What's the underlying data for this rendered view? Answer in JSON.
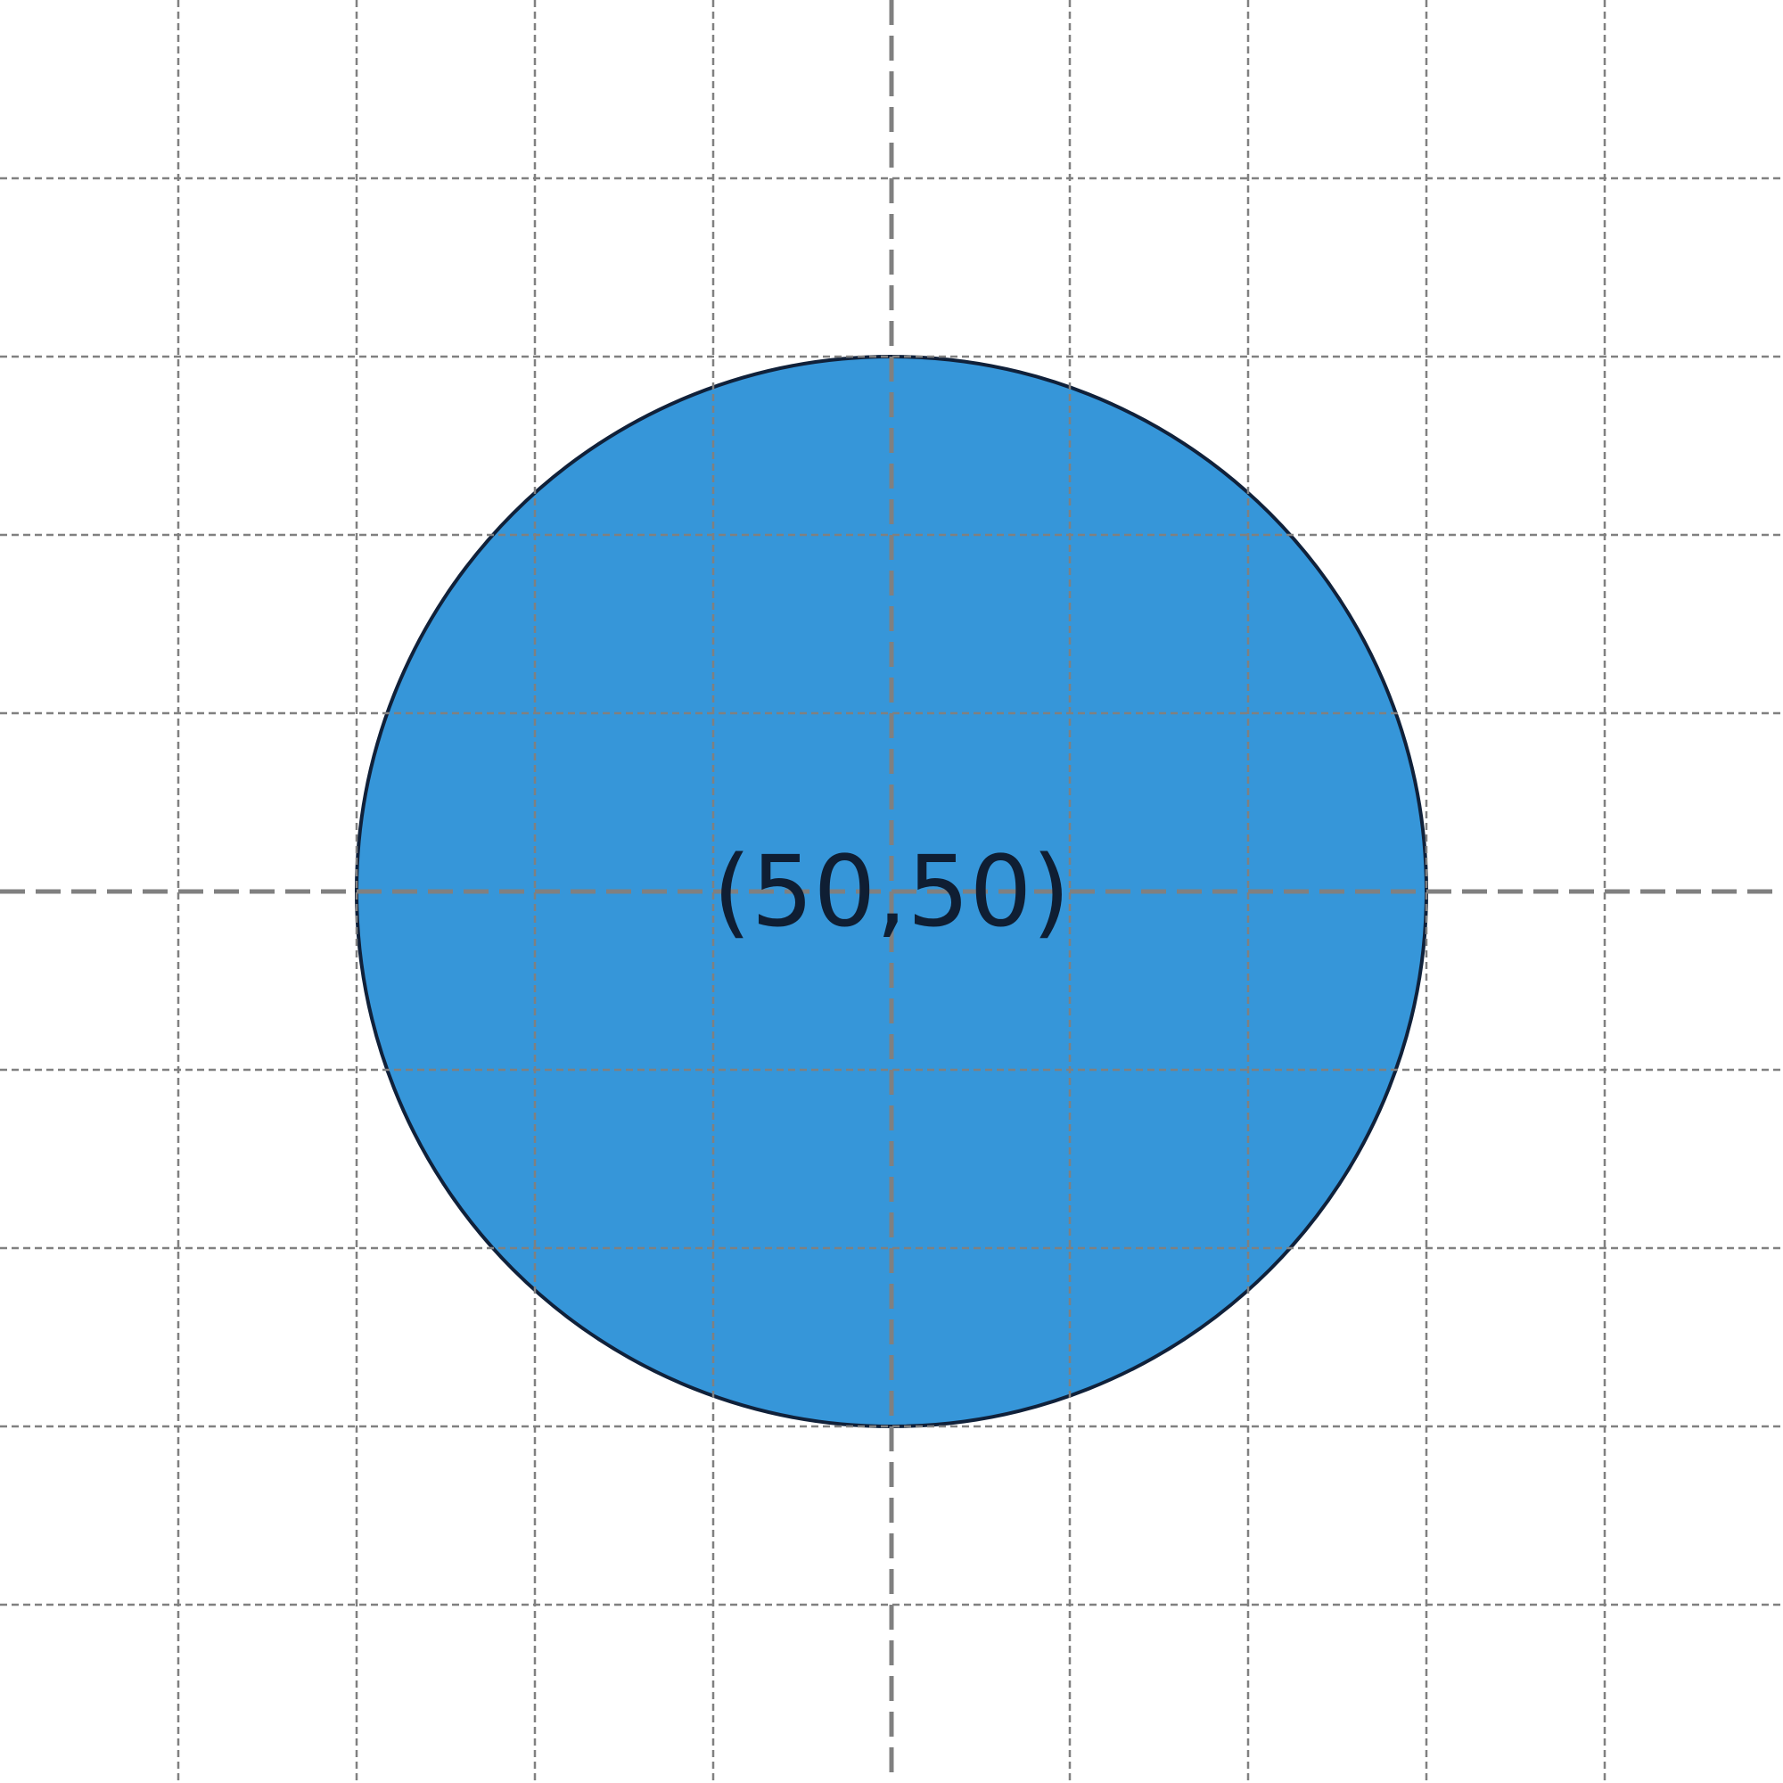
{
  "colors": {
    "background": "#ffffff",
    "grid": "#808080",
    "circle_fill": "#3696d9",
    "circle_stroke": "#10213a",
    "label": "#0f1e33"
  },
  "circle": {
    "label": "(50,50)"
  }
}
